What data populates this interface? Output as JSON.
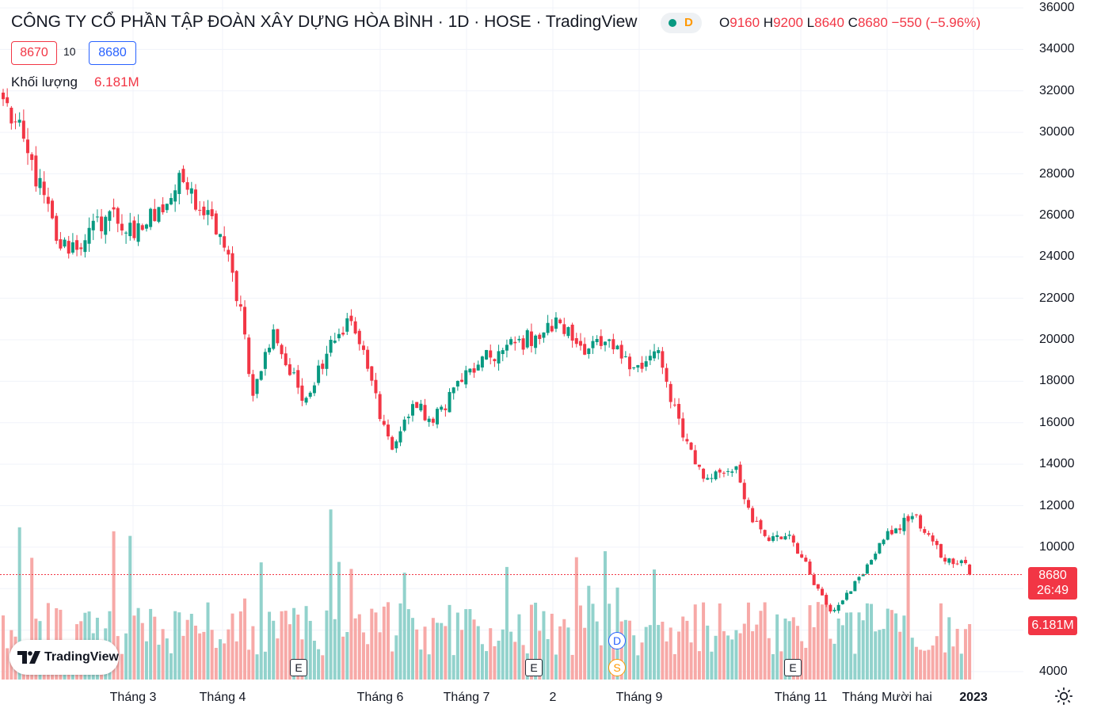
{
  "header": {
    "title": "CÔNG TY CỔ PHẦN TẬP ĐOÀN XÂY DỰNG HÒA BÌNH · 1D · HOSE · TradingView",
    "status_letter": "D",
    "ohlc": {
      "o_label": "O",
      "o": "9160",
      "h_label": "H",
      "h": "9200",
      "l_label": "L",
      "l": "8640",
      "c_label": "C",
      "c": "8680",
      "change": "−550 (−5.96%)"
    },
    "bid": "8670",
    "spread": "10",
    "ask": "8680",
    "volume_label": "Khối lượng",
    "volume_value": "6.181M"
  },
  "price_tag": {
    "price": "8680",
    "countdown": "26:49"
  },
  "volume_tag": "6.181M",
  "logo_text": "TradingView",
  "colors": {
    "up": "#089981",
    "down": "#f23645",
    "volume_up": "#92d2cc",
    "volume_down": "#f7a9a7",
    "grid": "#f0f3fa"
  },
  "events": [
    {
      "type": "E",
      "date": "2022-05-16",
      "label": "E"
    },
    {
      "type": "E",
      "date": "2022-08-05",
      "label": "E"
    },
    {
      "type": "D",
      "date": "2022-08-29",
      "label": "D"
    },
    {
      "type": "S",
      "date": "2022-08-29",
      "label": "S"
    },
    {
      "type": "E",
      "date": "2022-11-08",
      "label": "E"
    }
  ],
  "chart_data": {
    "type": "candlestick",
    "title": "CÔNG TY CỔ PHẦN TẬP ĐOÀN XÂY DỰNG HÒA BÌNH · 1D · HOSE",
    "interval": "1D",
    "ylim": [
      3800,
      36200
    ],
    "y_ticks": [
      4000,
      6000,
      8000,
      10000,
      12000,
      14000,
      16000,
      18000,
      20000,
      22000,
      24000,
      26000,
      28000,
      30000,
      32000,
      34000,
      36000
    ],
    "x_labels": [
      "Tháng 3",
      "Tháng 4",
      "Tháng 6",
      "Tháng 7",
      "2",
      "Tháng 9",
      "Tháng 11",
      "Tháng Mười hai",
      "2023"
    ],
    "last_price": 8680,
    "trend_anchors": [
      {
        "bar": 0,
        "close": 31600
      },
      {
        "bar": 6,
        "close": 29000
      },
      {
        "bar": 14,
        "close": 24400
      },
      {
        "bar": 20,
        "close": 24800
      },
      {
        "bar": 26,
        "close": 26200
      },
      {
        "bar": 32,
        "close": 24900
      },
      {
        "bar": 38,
        "close": 26400
      },
      {
        "bar": 44,
        "close": 27600
      },
      {
        "bar": 49,
        "close": 26000
      },
      {
        "bar": 53,
        "close": 25100
      },
      {
        "bar": 58,
        "close": 21600
      },
      {
        "bar": 61,
        "close": 17300
      },
      {
        "bar": 66,
        "close": 20500
      },
      {
        "bar": 70,
        "close": 18300
      },
      {
        "bar": 74,
        "close": 17200
      },
      {
        "bar": 80,
        "close": 20000
      },
      {
        "bar": 85,
        "close": 20900
      },
      {
        "bar": 89,
        "close": 18600
      },
      {
        "bar": 93,
        "close": 15900
      },
      {
        "bar": 95,
        "close": 14700
      },
      {
        "bar": 100,
        "close": 16900
      },
      {
        "bar": 105,
        "close": 16000
      },
      {
        "bar": 110,
        "close": 17700
      },
      {
        "bar": 116,
        "close": 18800
      },
      {
        "bar": 122,
        "close": 19500
      },
      {
        "bar": 130,
        "close": 20200
      },
      {
        "bar": 136,
        "close": 20800
      },
      {
        "bar": 140,
        "close": 19800
      },
      {
        "bar": 146,
        "close": 19700
      },
      {
        "bar": 152,
        "close": 19200
      },
      {
        "bar": 156,
        "close": 18600
      },
      {
        "bar": 160,
        "close": 19500
      },
      {
        "bar": 163,
        "close": 17000
      },
      {
        "bar": 167,
        "close": 15100
      },
      {
        "bar": 171,
        "close": 13300
      },
      {
        "bar": 175,
        "close": 13600
      },
      {
        "bar": 179,
        "close": 13900
      },
      {
        "bar": 183,
        "close": 11200
      },
      {
        "bar": 187,
        "close": 10300
      },
      {
        "bar": 192,
        "close": 10600
      },
      {
        "bar": 195,
        "close": 9500
      },
      {
        "bar": 199,
        "close": 8000
      },
      {
        "bar": 202,
        "close": 6900
      },
      {
        "bar": 206,
        "close": 7800
      },
      {
        "bar": 210,
        "close": 8700
      },
      {
        "bar": 214,
        "close": 10200
      },
      {
        "bar": 218,
        "close": 10900
      },
      {
        "bar": 222,
        "close": 11500
      },
      {
        "bar": 226,
        "close": 10600
      },
      {
        "bar": 229,
        "close": 9500
      },
      {
        "bar": 233,
        "close": 9200
      },
      {
        "bar": 235,
        "close": 9230
      },
      {
        "bar": 236,
        "close": 8680
      }
    ],
    "last_bar": {
      "open": 9160,
      "high": 9200,
      "low": 8640,
      "close": 8680,
      "volume": "6.181M"
    }
  }
}
